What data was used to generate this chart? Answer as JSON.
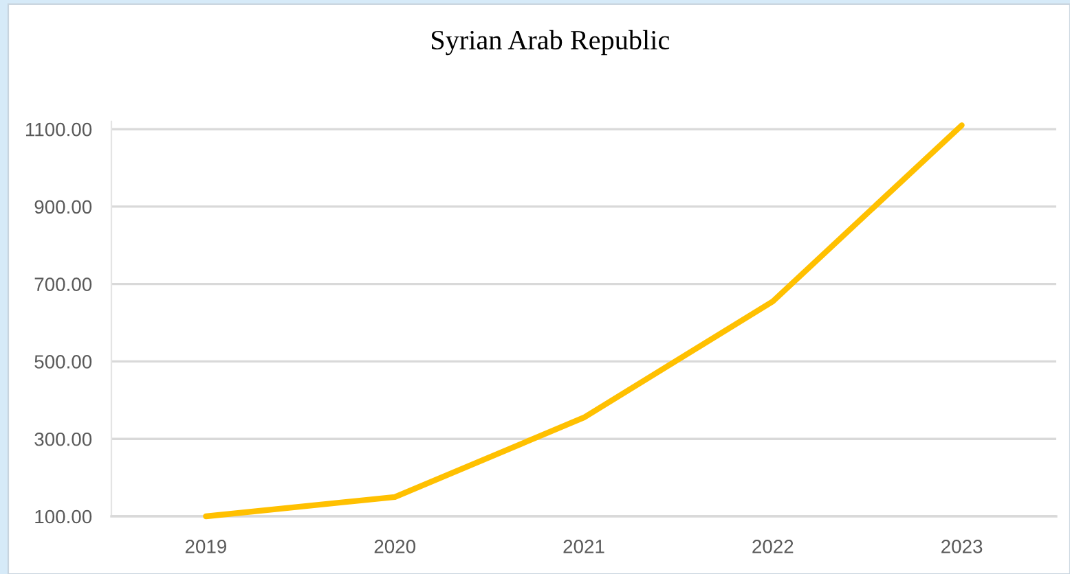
{
  "chart_data": {
    "type": "line",
    "title": "Syrian Arab Republic",
    "categories": [
      "2019",
      "2020",
      "2021",
      "2022",
      "2023"
    ],
    "series": [
      {
        "color": "#ffc000",
        "values": [
          100,
          150,
          355,
          655,
          1110
        ]
      }
    ],
    "ylim": [
      100,
      1120
    ],
    "yticks": [
      {
        "value": 100,
        "label": "100.00"
      },
      {
        "value": 300,
        "label": "300.00"
      },
      {
        "value": 500,
        "label": "500.00"
      },
      {
        "value": 700,
        "label": "700.00"
      },
      {
        "value": 900,
        "label": "900.00"
      },
      {
        "value": 1100,
        "label": "1100.00"
      }
    ],
    "grid": "y",
    "marker": "none",
    "line_style": "solid"
  }
}
